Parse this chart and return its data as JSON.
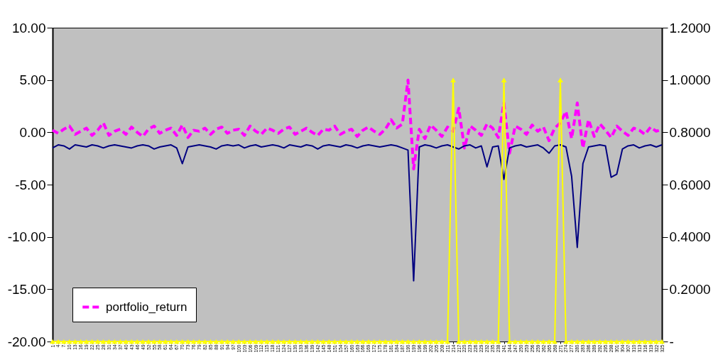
{
  "chart_data": {
    "type": "line",
    "x": [
      1,
      4,
      7,
      10,
      13,
      16,
      19,
      22,
      25,
      28,
      31,
      34,
      37,
      40,
      43,
      46,
      49,
      52,
      55,
      58,
      61,
      64,
      67,
      70,
      73,
      76,
      79,
      82,
      85,
      88,
      91,
      94,
      97,
      100,
      103,
      106,
      109,
      112,
      115,
      118,
      121,
      124,
      127,
      130,
      133,
      136,
      139,
      142,
      145,
      148,
      151,
      154,
      157,
      160,
      163,
      166,
      169,
      172,
      175,
      178,
      181,
      184,
      187,
      190,
      193,
      196,
      199,
      202,
      205,
      208,
      211,
      214,
      217,
      220,
      223,
      226,
      229,
      232,
      235,
      238,
      241,
      244,
      247,
      250,
      253,
      256,
      259,
      262,
      265,
      268,
      271,
      274,
      277,
      280,
      283,
      286,
      289,
      292,
      295,
      298,
      301,
      304,
      307,
      310,
      313,
      316,
      319,
      322,
      325
    ],
    "xlim": [
      1,
      325
    ],
    "xticks": [
      1,
      4,
      7,
      10,
      13,
      16,
      19,
      22,
      25,
      28,
      31,
      34,
      37,
      40,
      43,
      46,
      49,
      52,
      55,
      58,
      61,
      64,
      67,
      70,
      73,
      76,
      79,
      82,
      85,
      88,
      91,
      94,
      97,
      100,
      103,
      106,
      109,
      112,
      115,
      118,
      121,
      124,
      127,
      130,
      133,
      136,
      139,
      142,
      145,
      148,
      151,
      154,
      157,
      160,
      163,
      166,
      169,
      172,
      175,
      178,
      181,
      184,
      187,
      190,
      193,
      196,
      199,
      202,
      205,
      208,
      211,
      214,
      217,
      220,
      223,
      226,
      229,
      232,
      235,
      238,
      241,
      244,
      247,
      250,
      253,
      256,
      259,
      262,
      265,
      268,
      271,
      274,
      277,
      280,
      283,
      286,
      289,
      292,
      295,
      298,
      301,
      304,
      307,
      310,
      313,
      316,
      319,
      322,
      325
    ],
    "ylim": [
      -20,
      10
    ],
    "yticks": [
      {
        "value": -20,
        "label": "-20.00"
      },
      {
        "value": -15,
        "label": "-15.00"
      },
      {
        "value": -10,
        "label": "-10.00"
      },
      {
        "value": -5,
        "label": "-5.00"
      },
      {
        "value": 0,
        "label": "0.00"
      },
      {
        "value": 5,
        "label": "5.00"
      },
      {
        "value": 10,
        "label": "10.00"
      }
    ],
    "y2lim": [
      0,
      1.2
    ],
    "y2ticks": [
      {
        "value": 0,
        "label": "-"
      },
      {
        "value": 0.2,
        "label": "0.2000"
      },
      {
        "value": 0.4,
        "label": "0.4000"
      },
      {
        "value": 0.6,
        "label": "0.6000"
      },
      {
        "value": 0.8,
        "label": "0.8000"
      },
      {
        "value": 1,
        "label": "1.0000"
      },
      {
        "value": 1.2,
        "label": "1.2000"
      }
    ],
    "legend": "bottom left",
    "series": [
      {
        "name": "portfolio_return",
        "color": "#ff00ff",
        "line_style": "dashed",
        "values": [
          0.2,
          -0.1,
          0.3,
          0.6,
          -0.2,
          0.1,
          0.4,
          -0.3,
          0.2,
          0.9,
          -0.3,
          0.1,
          0.3,
          -0.2,
          0.5,
          0.0,
          -0.4,
          0.3,
          0.6,
          -0.1,
          0.2,
          0.4,
          -0.3,
          0.7,
          -0.5,
          0.2,
          0.1,
          0.4,
          -0.2,
          0.3,
          0.5,
          -0.1,
          0.2,
          0.3,
          -0.3,
          0.6,
          0.1,
          -0.2,
          0.4,
          0.2,
          -0.1,
          0.3,
          0.5,
          -0.2,
          0.1,
          0.4,
          0.0,
          -0.3,
          0.3,
          0.2,
          0.6,
          -0.2,
          0.1,
          0.3,
          -0.4,
          0.2,
          0.5,
          0.1,
          -0.2,
          0.3,
          1.2,
          0.4,
          0.8,
          5.0,
          -3.5,
          0.3,
          -0.6,
          0.7,
          0.2,
          -0.4,
          0.5,
          0.1,
          2.3,
          -1.5,
          0.6,
          0.2,
          -0.3,
          0.8,
          0.4,
          -0.5,
          2.8,
          -2.0,
          0.6,
          0.3,
          -0.2,
          0.7,
          0.1,
          0.5,
          -0.8,
          0.4,
          0.9,
          2.0,
          -0.6,
          2.8,
          -1.5,
          1.2,
          -0.4,
          0.8,
          0.2,
          -0.5,
          0.6,
          0.1,
          -0.3,
          0.4,
          0.2,
          -0.2,
          0.5,
          0.1,
          0.3
        ]
      },
      {
        "color": "#000080",
        "values": [
          -1.5,
          -1.2,
          -1.3,
          -1.6,
          -1.2,
          -1.3,
          -1.4,
          -1.2,
          -1.3,
          -1.5,
          -1.3,
          -1.2,
          -1.3,
          -1.4,
          -1.5,
          -1.3,
          -1.2,
          -1.3,
          -1.6,
          -1.4,
          -1.3,
          -1.2,
          -1.5,
          -3.0,
          -1.4,
          -1.3,
          -1.2,
          -1.3,
          -1.4,
          -1.6,
          -1.3,
          -1.2,
          -1.3,
          -1.2,
          -1.5,
          -1.3,
          -1.2,
          -1.4,
          -1.3,
          -1.2,
          -1.3,
          -1.5,
          -1.2,
          -1.3,
          -1.4,
          -1.2,
          -1.3,
          -1.6,
          -1.3,
          -1.2,
          -1.3,
          -1.4,
          -1.2,
          -1.3,
          -1.5,
          -1.3,
          -1.2,
          -1.3,
          -1.4,
          -1.3,
          -1.2,
          -1.3,
          -1.5,
          -1.7,
          -14.2,
          -1.4,
          -1.2,
          -1.3,
          -1.5,
          -1.3,
          -1.2,
          -1.4,
          -1.6,
          -1.3,
          -1.2,
          -1.5,
          -1.3,
          -3.3,
          -1.4,
          -1.3,
          -4.5,
          -1.5,
          -1.3,
          -1.2,
          -1.4,
          -1.3,
          -1.2,
          -1.5,
          -2.0,
          -1.3,
          -1.2,
          -1.4,
          -4.2,
          -11.0,
          -3.0,
          -1.4,
          -1.3,
          -1.2,
          -1.3,
          -4.3,
          -4.0,
          -1.6,
          -1.3,
          -1.2,
          -1.5,
          -1.3,
          -1.2,
          -1.4,
          -1.2
        ]
      },
      {
        "color": "#ffff00",
        "axis": "y2",
        "marker": "triangle",
        "values": [
          0,
          0,
          0,
          0,
          0,
          0,
          0,
          0,
          0,
          0,
          0,
          0,
          0,
          0,
          0,
          0,
          0,
          0,
          0,
          0,
          0,
          0,
          0,
          0,
          0,
          0,
          0,
          0,
          0,
          0,
          0,
          0,
          0,
          0,
          0,
          0,
          0,
          0,
          0,
          0,
          0,
          0,
          0,
          0,
          0,
          0,
          0,
          0,
          0,
          0,
          0,
          0,
          0,
          0,
          0,
          0,
          0,
          0,
          0,
          0,
          0,
          0,
          0,
          0,
          0,
          0,
          0,
          0,
          0,
          0,
          0,
          1,
          0,
          0,
          0,
          0,
          0,
          0,
          0,
          0,
          1,
          0,
          0,
          0,
          0,
          0,
          0,
          0,
          0,
          0,
          1,
          0,
          0,
          0,
          0,
          0,
          0,
          0,
          0,
          0,
          0,
          0,
          0,
          0,
          0,
          0,
          0,
          0,
          0
        ]
      }
    ]
  }
}
